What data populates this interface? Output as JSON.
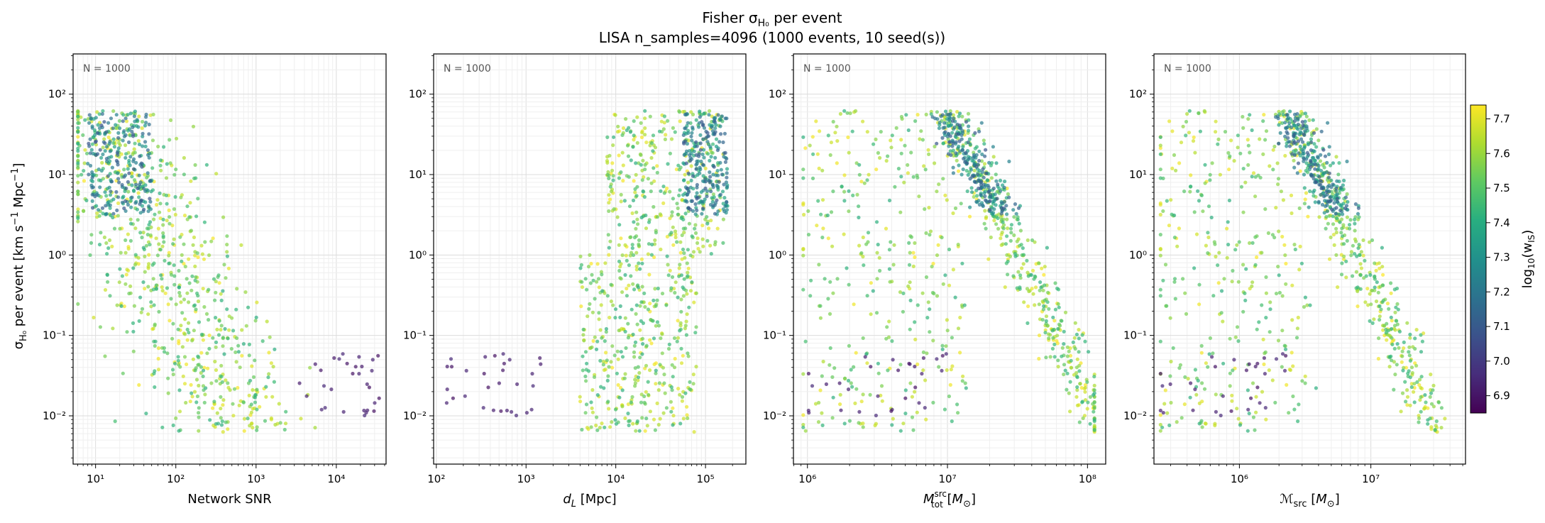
{
  "figure": {
    "title_line1_prefix": "Fisher σ",
    "title_line1_sub": "H₀",
    "title_line1_suffix": " per event",
    "title_line2": "LISA  n_samples=4096  (1000 events, 10 seed(s))"
  },
  "colorbar": {
    "label": "log₁₀(w_IS)",
    "range": [
      6.85,
      7.74
    ],
    "ticks": [
      "6.9",
      "7.0",
      "7.1",
      "7.2",
      "7.3",
      "7.4",
      "7.5",
      "7.6",
      "7.7"
    ],
    "colormap": "viridis"
  },
  "chart_data": [
    {
      "type": "scatter",
      "name": "snr",
      "xlabel": "Network SNR",
      "ylabel": "σ_H₀ per event [km s⁻¹ Mpc⁻¹]",
      "xlim_log10": [
        0.72,
        4.62
      ],
      "ylim_log10": [
        -2.6,
        2.5
      ],
      "x_ticks": [
        "10¹",
        "10²",
        "10³",
        "10⁴"
      ],
      "y_ticks": [
        "10⁻²",
        "10⁻¹",
        "10⁰",
        "10¹",
        "10²"
      ],
      "annotation": "N = 1000",
      "n_points": 1000
    },
    {
      "type": "scatter",
      "name": "dl",
      "xlabel": "d_L [Mpc]",
      "xlim_log10": [
        1.97,
        5.45
      ],
      "ylim_log10": [
        -2.6,
        2.5
      ],
      "x_ticks": [
        "10²",
        "10³",
        "10⁴",
        "10⁵"
      ],
      "y_ticks": [
        "10⁻²",
        "10⁻¹",
        "10⁰",
        "10¹",
        "10²"
      ],
      "annotation": "N = 1000",
      "n_points": 1000
    },
    {
      "type": "scatter",
      "name": "mtot",
      "xlabel": "M_tot^src [M☉]",
      "xlim_log10": [
        5.9,
        8.13
      ],
      "ylim_log10": [
        -2.6,
        2.5
      ],
      "x_ticks": [
        "10⁶",
        "10⁷",
        "10⁸"
      ],
      "y_ticks": [
        "10⁻²",
        "10⁻¹",
        "10⁰",
        "10¹",
        "10²"
      ],
      "annotation": "N = 1000",
      "n_points": 1000
    },
    {
      "type": "scatter",
      "name": "mchirp",
      "xlabel": "ℳ_src [M☉]",
      "xlim_log10": [
        5.35,
        7.72
      ],
      "ylim_log10": [
        -2.6,
        2.5
      ],
      "x_ticks": [
        "10⁶",
        "10⁷"
      ],
      "y_ticks": [
        "10⁻²",
        "10⁻¹",
        "10⁰",
        "10¹",
        "10²"
      ],
      "annotation": "N = 1000",
      "n_points": 1000
    }
  ]
}
